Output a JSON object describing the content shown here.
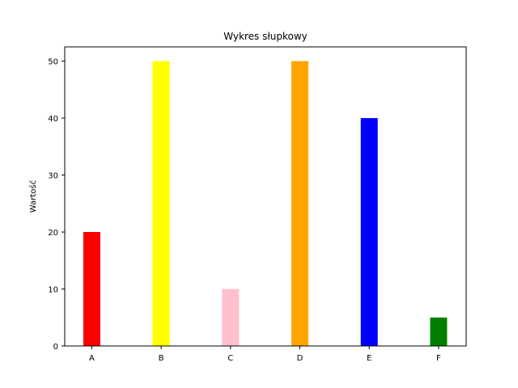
{
  "chart_data": {
    "type": "bar",
    "title": "Wykres słupkowy",
    "xlabel": "",
    "ylabel": "Wartość",
    "categories": [
      "A",
      "B",
      "C",
      "D",
      "E",
      "F"
    ],
    "values": [
      20,
      50,
      10,
      50,
      40,
      5
    ],
    "colors": [
      "#ff0000",
      "#ffff00",
      "#ffc0cb",
      "#ffa500",
      "#0000ff",
      "#008000"
    ],
    "ylim": [
      0,
      52.5
    ],
    "yticks": [
      0,
      10,
      20,
      30,
      40,
      50
    ],
    "grid": false,
    "legend": false
  }
}
